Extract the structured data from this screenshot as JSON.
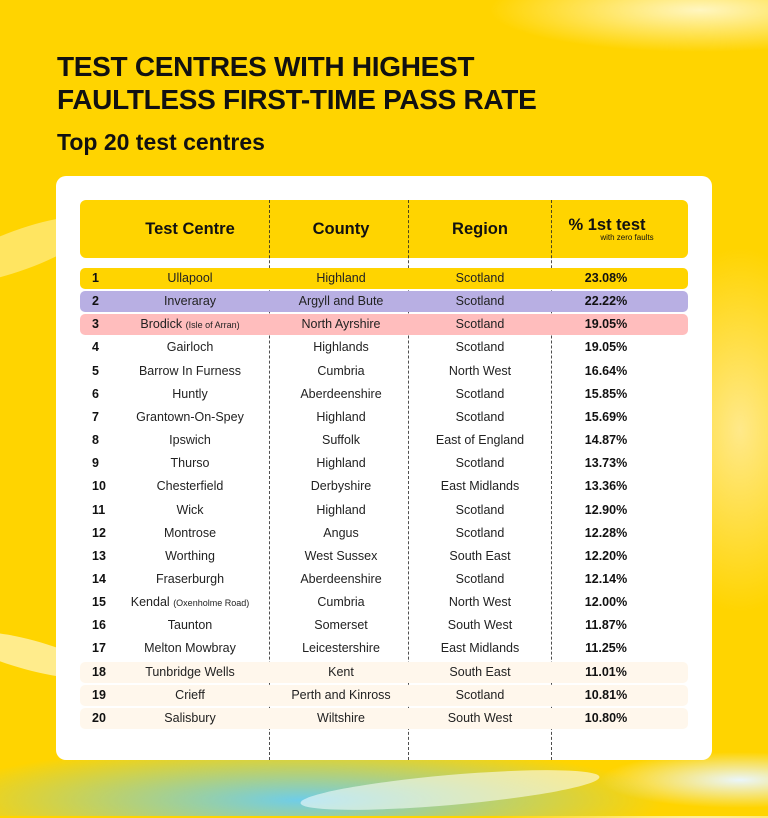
{
  "title_line1": "TEST CENTRES WITH HIGHEST",
  "title_line2": "FAULTLESS FIRST-TIME PASS RATE",
  "subtitle": "Top 20 test centres",
  "colors": {
    "background": "#FFD400",
    "header": "#FFD400",
    "rank1": "#FFD400",
    "rank2": "#B8AFE3",
    "rank3": "#FFBDBD",
    "rank18_20": "#FFF7EC"
  },
  "chart_data": {
    "type": "table",
    "columns": [
      "",
      "Test Centre",
      "County",
      "Region",
      "% 1st test"
    ],
    "column_note": "with zero faults",
    "rows": [
      {
        "rank": "1",
        "centre": "Ullapool",
        "note": "",
        "county": "Highland",
        "region": "Scotland",
        "pct": "23.08%"
      },
      {
        "rank": "2",
        "centre": "Inveraray",
        "note": "",
        "county": "Argyll and Bute",
        "region": "Scotland",
        "pct": "22.22%"
      },
      {
        "rank": "3",
        "centre": "Brodick",
        "note": "(Isle of Arran)",
        "county": "North Ayrshire",
        "region": "Scotland",
        "pct": "19.05%"
      },
      {
        "rank": "4",
        "centre": "Gairloch",
        "note": "",
        "county": "Highlands",
        "region": "Scotland",
        "pct": "19.05%"
      },
      {
        "rank": "5",
        "centre": "Barrow In Furness",
        "note": "",
        "county": "Cumbria",
        "region": "North West",
        "pct": "16.64%"
      },
      {
        "rank": "6",
        "centre": "Huntly",
        "note": "",
        "county": "Aberdeenshire",
        "region": "Scotland",
        "pct": "15.85%"
      },
      {
        "rank": "7",
        "centre": "Grantown-On-Spey",
        "note": "",
        "county": "Highland",
        "region": "Scotland",
        "pct": "15.69%"
      },
      {
        "rank": "8",
        "centre": "Ipswich",
        "note": "",
        "county": "Suffolk",
        "region": "East of England",
        "pct": "14.87%"
      },
      {
        "rank": "9",
        "centre": "Thurso",
        "note": "",
        "county": "Highland",
        "region": "Scotland",
        "pct": "13.73%"
      },
      {
        "rank": "10",
        "centre": "Chesterfield",
        "note": "",
        "county": "Derbyshire",
        "region": "East Midlands",
        "pct": "13.36%"
      },
      {
        "rank": "11",
        "centre": "Wick",
        "note": "",
        "county": "Highland",
        "region": "Scotland",
        "pct": "12.90%"
      },
      {
        "rank": "12",
        "centre": "Montrose",
        "note": "",
        "county": "Angus",
        "region": "Scotland",
        "pct": "12.28%"
      },
      {
        "rank": "13",
        "centre": "Worthing",
        "note": "",
        "county": "West Sussex",
        "region": "South East",
        "pct": "12.20%"
      },
      {
        "rank": "14",
        "centre": "Fraserburgh",
        "note": "",
        "county": "Aberdeenshire",
        "region": "Scotland",
        "pct": "12.14%"
      },
      {
        "rank": "15",
        "centre": "Kendal",
        "note": "(Oxenholme Road)",
        "county": "Cumbria",
        "region": "North West",
        "pct": "12.00%"
      },
      {
        "rank": "16",
        "centre": "Taunton",
        "note": "",
        "county": "Somerset",
        "region": "South West",
        "pct": "11.87%"
      },
      {
        "rank": "17",
        "centre": "Melton Mowbray",
        "note": "",
        "county": "Leicestershire",
        "region": "East Midlands",
        "pct": "11.25%"
      },
      {
        "rank": "18",
        "centre": "Tunbridge Wells",
        "note": "",
        "county": "Kent",
        "region": "South East",
        "pct": "11.01%"
      },
      {
        "rank": "19",
        "centre": "Crieff",
        "note": "",
        "county": "Perth and Kinross",
        "region": "Scotland",
        "pct": "10.81%"
      },
      {
        "rank": "20",
        "centre": "Salisbury",
        "note": "",
        "county": "Wiltshire",
        "region": "South West",
        "pct": "10.80%"
      }
    ]
  }
}
